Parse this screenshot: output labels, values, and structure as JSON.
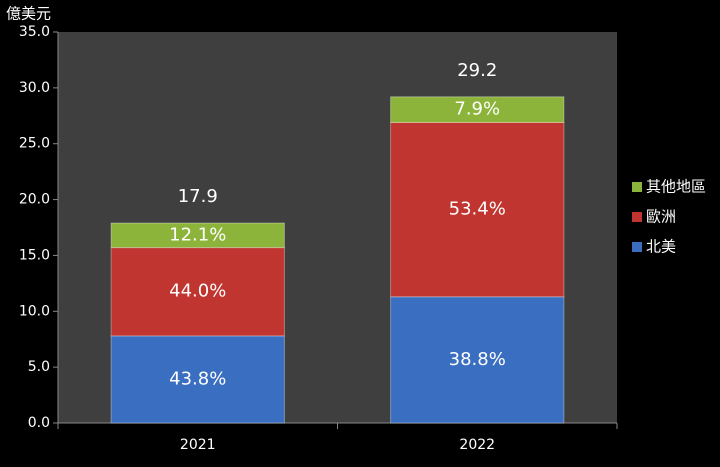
{
  "chart_data": {
    "type": "stacked-bar",
    "y_label": "億美元",
    "categories": [
      "2021",
      "2022"
    ],
    "series": [
      {
        "name": "北美",
        "color": "#3a6ec0",
        "values": [
          7.8,
          11.3
        ],
        "share_labels": [
          "43.8%",
          "38.8%"
        ]
      },
      {
        "name": "歐洲",
        "color": "#c0352f",
        "values": [
          7.9,
          15.6
        ],
        "share_labels": [
          "44.0%",
          "53.4%"
        ]
      },
      {
        "name": "其他地區",
        "color": "#8db43a",
        "values": [
          2.2,
          2.3
        ],
        "share_labels": [
          "12.1%",
          "7.9%"
        ]
      }
    ],
    "totals": [
      17.9,
      29.2
    ],
    "ylim": [
      0,
      35
    ],
    "yticks": [
      {
        "value": 0,
        "label": "0.0"
      },
      {
        "value": 5,
        "label": "5.0"
      },
      {
        "value": 10,
        "label": "10.0"
      },
      {
        "value": 15,
        "label": "15.0"
      },
      {
        "value": 20,
        "label": "20.0"
      },
      {
        "value": 25,
        "label": "25.0"
      },
      {
        "value": 30,
        "label": "30.0"
      },
      {
        "value": 35,
        "label": "35.0"
      }
    ]
  }
}
